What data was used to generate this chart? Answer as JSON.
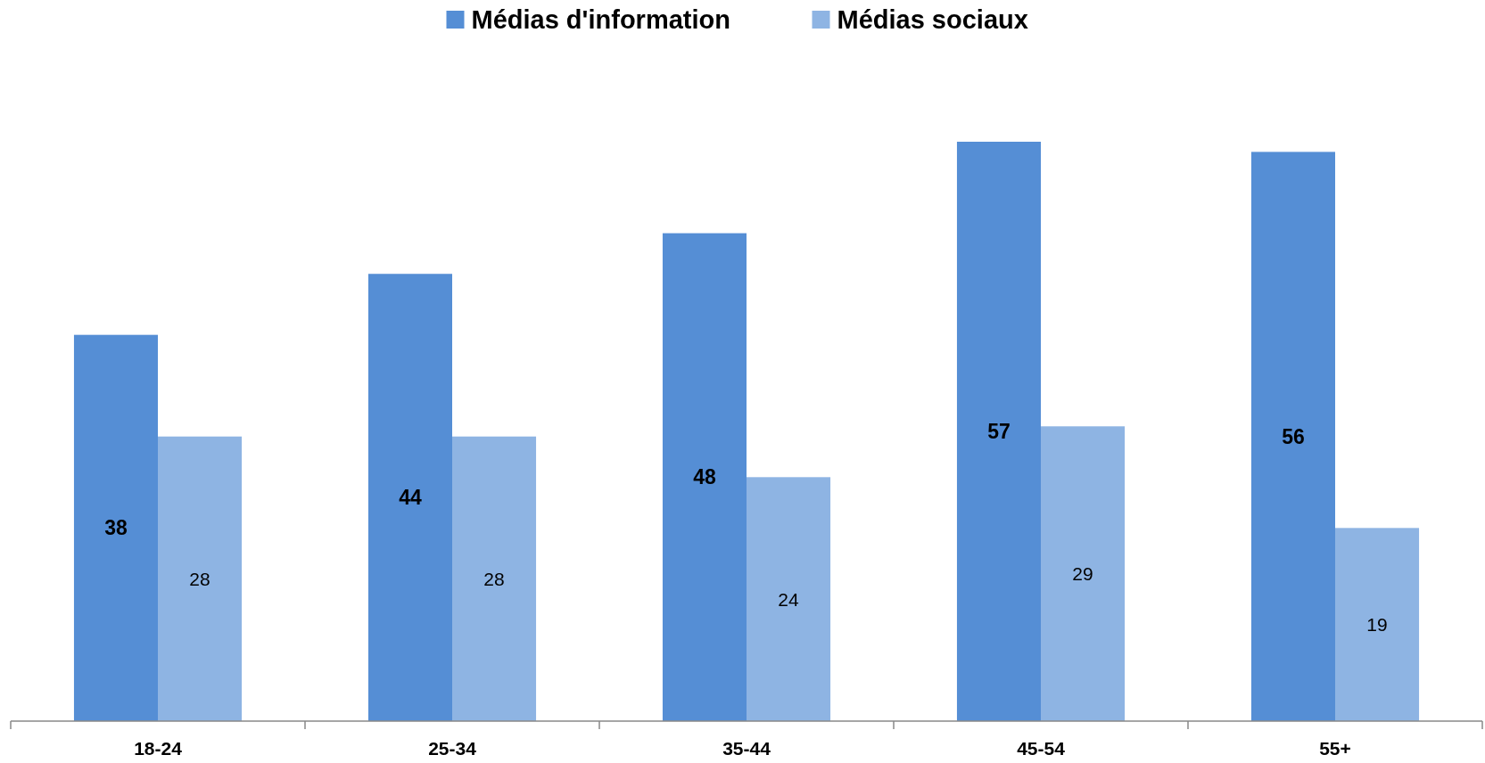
{
  "chart_data": {
    "type": "bar",
    "categories": [
      "18-24",
      "25-34",
      "35-44",
      "45-54",
      "55+"
    ],
    "series": [
      {
        "name": "Médias d'information",
        "color": "#558ed5",
        "values": [
          38,
          44,
          48,
          57,
          56
        ]
      },
      {
        "name": "Médias sociaux",
        "color": "#8eb4e3",
        "values": [
          28,
          28,
          24,
          29,
          19
        ]
      }
    ],
    "data_labels": true,
    "legend": "top",
    "grid": false
  }
}
